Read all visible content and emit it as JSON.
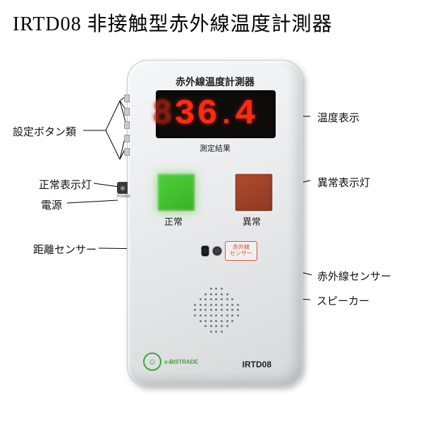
{
  "title": "IRTD08 非接触型赤外線温度計測器",
  "device": {
    "heading": "赤外線温度計測器",
    "reading": {
      "ghost": "8",
      "main": "36",
      "decimal": "4"
    },
    "result_label": "測定結果",
    "normal_label": "正常",
    "abnormal_label": "異常",
    "ir_tag": "赤外線\nセンサー",
    "model": "IRTD08",
    "brand_text": "e-BISTRADE",
    "power_label": "POWER",
    "colors": {
      "normal_indicator": "#4cd038",
      "abnormal_indicator": "#b24a2e",
      "display_bg": "#0e0c0b",
      "segment": "#ff2a10",
      "ir_tag_border": "#d55a3a",
      "brand": "#3aa53a"
    }
  },
  "callouts": {
    "settings_buttons": "設定ボタン類",
    "normal_indicator": "正常表示灯",
    "power": "電源",
    "distance_sensor": "距離センサー",
    "temperature_display": "温度表示",
    "abnormal_indicator": "異常表示灯",
    "ir_sensor": "赤外線センサー",
    "speaker": "スピーカー"
  },
  "diagram": {
    "type": "labeled-product-diagram",
    "background": "#ffffff",
    "title_fontsize": 28,
    "callout_fontsize": 15
  }
}
